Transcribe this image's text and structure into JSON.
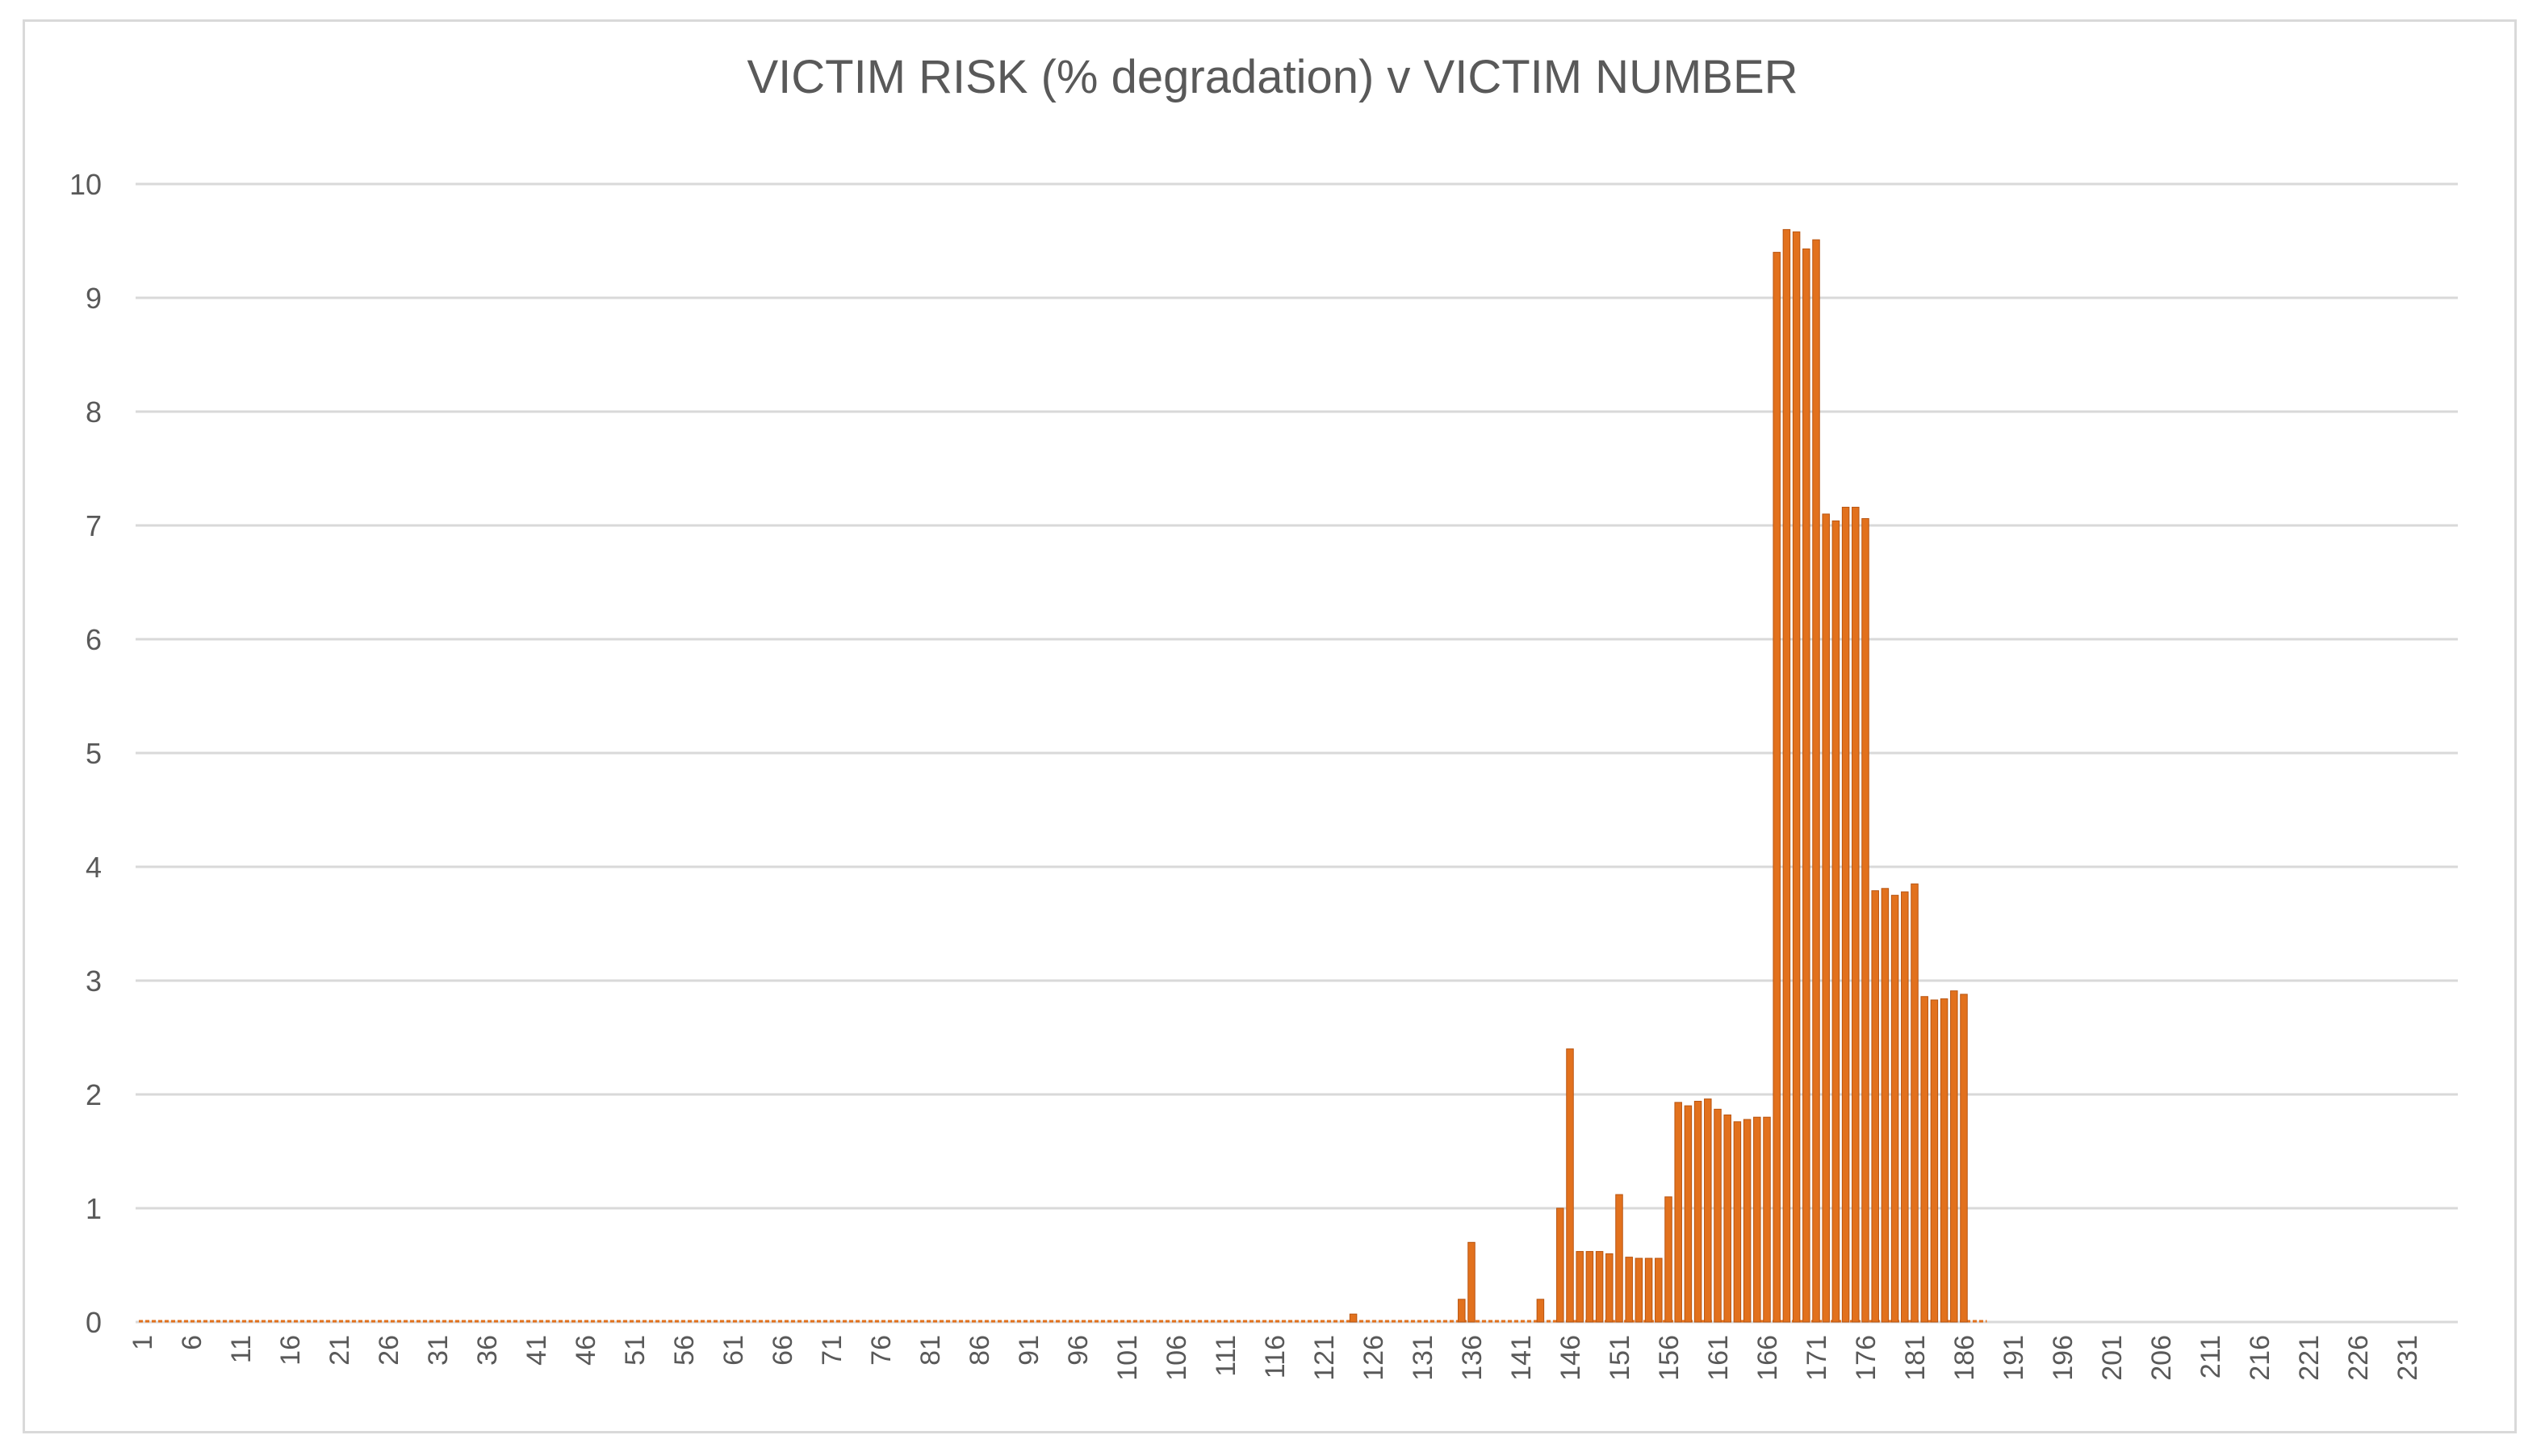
{
  "chart_data": {
    "type": "bar",
    "title": "VICTIM RISK (% degradation) v VICTIM NUMBER",
    "xlabel": "",
    "ylabel": "",
    "x_range": [
      1,
      235
    ],
    "x_tick_labels": [
      "1",
      "6",
      "11",
      "16",
      "21",
      "26",
      "31",
      "36",
      "41",
      "46",
      "51",
      "56",
      "61",
      "66",
      "71",
      "76",
      "81",
      "86",
      "91",
      "96",
      "101",
      "106",
      "111",
      "116",
      "121",
      "126",
      "131",
      "136",
      "141",
      "146",
      "151",
      "156",
      "161",
      "166",
      "171",
      "176",
      "181",
      "186",
      "191",
      "196",
      "201",
      "206",
      "211",
      "216",
      "221",
      "226",
      "231"
    ],
    "ylim": [
      0,
      10
    ],
    "y_ticks": [
      0,
      1,
      2,
      3,
      4,
      5,
      6,
      7,
      8,
      9,
      10
    ],
    "grid": "horizontal",
    "legend": "none",
    "colors": {
      "bar": "#e2711d",
      "bar_edge": "#b85410",
      "grid": "#d9d9d9",
      "text": "#595959"
    },
    "x": [
      124,
      134,
      135,
      136,
      143,
      144,
      145,
      146,
      147,
      148,
      149,
      150,
      151,
      152,
      153,
      154,
      155,
      156,
      157,
      158,
      159,
      160,
      161,
      162,
      163,
      164,
      165,
      166,
      167,
      168,
      169,
      170,
      171,
      172,
      173,
      174,
      175,
      176,
      177,
      178,
      179,
      180,
      181,
      182,
      183,
      184,
      185,
      186
    ],
    "values": [
      0.07,
      0.0,
      0.2,
      0.7,
      0.2,
      0.0,
      1.0,
      2.4,
      0.62,
      0.62,
      0.62,
      0.6,
      1.12,
      0.57,
      0.56,
      0.56,
      0.56,
      1.1,
      1.93,
      1.9,
      1.94,
      1.96,
      1.87,
      1.82,
      1.76,
      1.78,
      1.8,
      1.8,
      9.4,
      9.6,
      9.58,
      9.43,
      9.51,
      7.1,
      7.04,
      7.16,
      7.16,
      7.06,
      3.79,
      3.81,
      3.75,
      3.78,
      3.85,
      2.86,
      2.83,
      2.84,
      2.91,
      2.88
    ],
    "zero_line_range": [
      1,
      188
    ]
  }
}
